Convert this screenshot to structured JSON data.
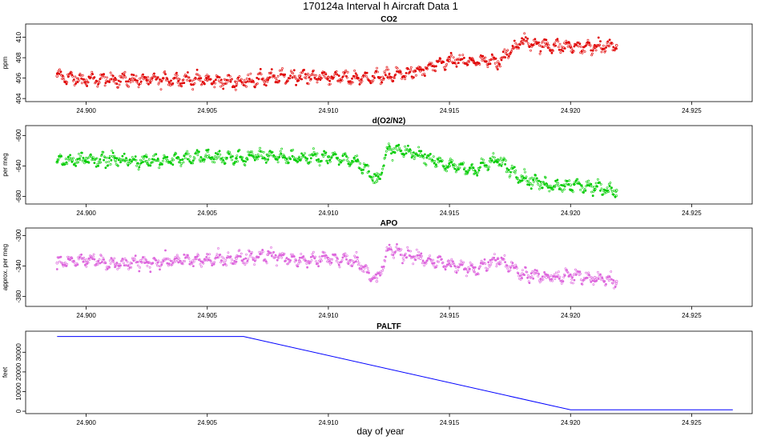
{
  "figure": {
    "title": "170124a   Interval h Aircraft Data 1",
    "xlabel": "day of year"
  },
  "colors": {
    "co2": "#e00000",
    "o2n2": "#00cc00",
    "apo": "#dd66dd",
    "paltf": "#0000ff"
  },
  "chart_data": [
    {
      "type": "scatter",
      "title": "CO2",
      "ylabel": "ppm",
      "xlim": [
        24.8975,
        24.9275
      ],
      "ylim": [
        403.7,
        411.3
      ],
      "xticks": [
        24.9,
        24.905,
        24.91,
        24.915,
        24.92,
        24.925
      ],
      "xtick_labels": [
        "24.900",
        "24.905",
        "24.910",
        "24.915",
        "24.920",
        "24.925"
      ],
      "yticks": [
        404,
        406,
        408,
        410
      ],
      "ytick_labels": [
        "404",
        "406",
        "408",
        "410"
      ],
      "series": [
        {
          "name": "CO2",
          "color_key": "co2",
          "x": [
            24.8988,
            24.9,
            24.9012,
            24.9025,
            24.9038,
            24.905,
            24.9062,
            24.9075,
            24.9088,
            24.91,
            24.9112,
            24.9125,
            24.9138,
            24.915,
            24.916,
            24.917,
            24.918,
            24.919,
            24.92,
            24.921,
            24.9219
          ],
          "y": [
            406.2,
            405.8,
            405.9,
            405.8,
            405.9,
            405.8,
            405.6,
            406.0,
            406.2,
            406.1,
            406.0,
            406.2,
            406.7,
            407.7,
            407.6,
            407.6,
            409.6,
            409.2,
            409.1,
            409.0,
            409.2
          ]
        }
      ]
    },
    {
      "type": "scatter",
      "title": "d(O2/N2)",
      "ylabel": "per meg",
      "xlim": [
        24.8975,
        24.9275
      ],
      "ylim": [
        -690,
        -587
      ],
      "xticks": [
        24.9,
        24.905,
        24.91,
        24.915,
        24.92,
        24.925
      ],
      "xtick_labels": [
        "24.900",
        "24.905",
        "24.910",
        "24.915",
        "24.920",
        "24.925"
      ],
      "yticks": [
        -680,
        -640,
        -600
      ],
      "ytick_labels": [
        "-680",
        "-640",
        "-600"
      ],
      "series": [
        {
          "name": "d(O2/N2)",
          "color_key": "o2n2",
          "x": [
            24.8988,
            24.9,
            24.9012,
            24.9025,
            24.9038,
            24.905,
            24.9062,
            24.9075,
            24.9088,
            24.91,
            24.9112,
            24.912,
            24.9125,
            24.9138,
            24.915,
            24.916,
            24.917,
            24.918,
            24.919,
            24.92,
            24.921,
            24.9219
          ],
          "y": [
            -635,
            -630,
            -632,
            -634,
            -630,
            -628,
            -630,
            -626,
            -630,
            -628,
            -633,
            -660,
            -618,
            -625,
            -640,
            -645,
            -632,
            -655,
            -665,
            -665,
            -668,
            -672
          ]
        }
      ]
    },
    {
      "type": "scatter",
      "title": "APO",
      "ylabel": "approx. per meg",
      "xlim": [
        24.8975,
        24.9275
      ],
      "ylim": [
        -393,
        -290
      ],
      "xticks": [
        24.9,
        24.905,
        24.91,
        24.915,
        24.92,
        24.925
      ],
      "xtick_labels": [
        "24.900",
        "24.905",
        "24.910",
        "24.915",
        "24.920",
        "24.925"
      ],
      "yticks": [
        -380,
        -340,
        -300
      ],
      "ytick_labels": [
        "-380",
        "-340",
        "-300"
      ],
      "series": [
        {
          "name": "APO",
          "color_key": "apo",
          "x": [
            24.8988,
            24.9,
            24.9012,
            24.9025,
            24.9038,
            24.905,
            24.9062,
            24.9075,
            24.9088,
            24.91,
            24.9112,
            24.912,
            24.9125,
            24.9138,
            24.915,
            24.916,
            24.917,
            24.918,
            24.919,
            24.92,
            24.921,
            24.9219
          ],
          "y": [
            -336,
            -332,
            -338,
            -335,
            -333,
            -332,
            -330,
            -325,
            -333,
            -330,
            -333,
            -360,
            -318,
            -330,
            -338,
            -345,
            -330,
            -350,
            -355,
            -353,
            -355,
            -360
          ]
        }
      ]
    },
    {
      "type": "line",
      "title": "PALTF",
      "ylabel": "feet",
      "xlim": [
        24.8975,
        24.9275
      ],
      "ylim": [
        -1200,
        40700
      ],
      "xticks": [
        24.9,
        24.905,
        24.91,
        24.915,
        24.92,
        24.925
      ],
      "xtick_labels": [
        "24.900",
        "24.905",
        "24.910",
        "24.915",
        "24.920",
        "24.925"
      ],
      "yticks": [
        0,
        10000,
        20000,
        30000
      ],
      "ytick_labels": [
        "0",
        "10000",
        "20000",
        "30000"
      ],
      "series": [
        {
          "name": "PALTF",
          "color_key": "paltf",
          "x": [
            24.8988,
            24.9065,
            24.92,
            24.9267
          ],
          "y": [
            38000,
            38000,
            700,
            700
          ]
        }
      ]
    }
  ]
}
